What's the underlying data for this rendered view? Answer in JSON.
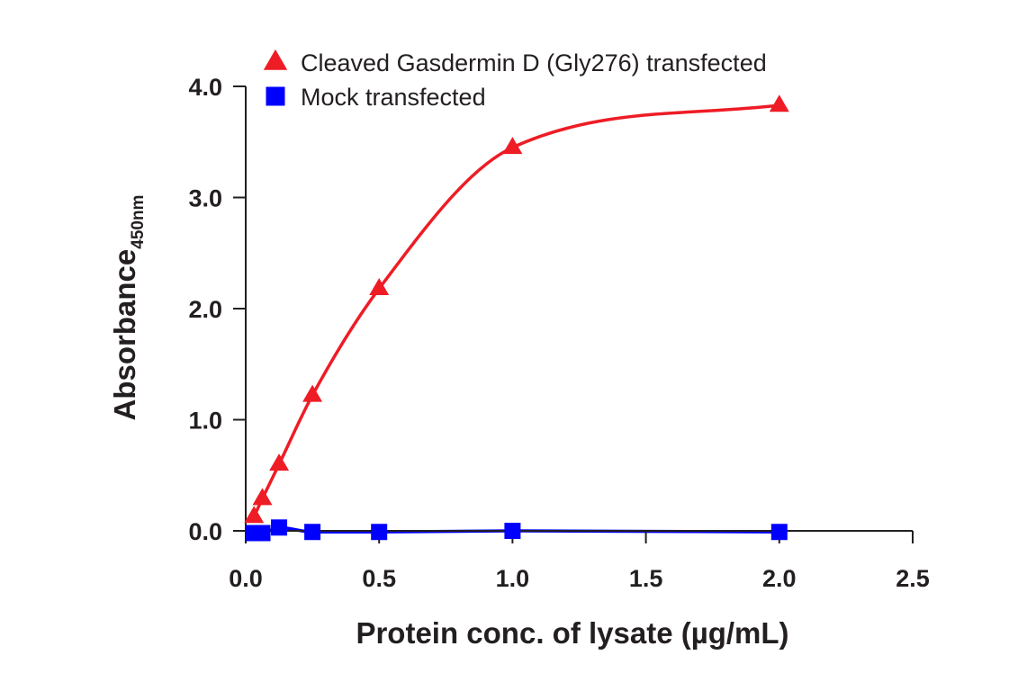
{
  "chart_data": {
    "type": "line",
    "xlabel": "Protein conc. of lysate (µg/mL)",
    "ylabel_main": "Absorbance",
    "ylabel_sub": "450nm",
    "xlim": [
      0,
      2.5
    ],
    "ylim": [
      0,
      4.0
    ],
    "x_ticks": [
      "0.0",
      "0.5",
      "1.0",
      "1.5",
      "2.0",
      "2.5"
    ],
    "y_ticks": [
      "0.0",
      "1.0",
      "2.0",
      "3.0",
      "4.0"
    ],
    "grid": false,
    "legend_position": "top-left",
    "series": [
      {
        "name": "Cleaved Gasdermin D (Gly276) transfected",
        "marker": "triangle",
        "color": "#ee1c25",
        "points": [
          {
            "x": 0.031,
            "y": 0.13
          },
          {
            "x": 0.0625,
            "y": 0.29
          },
          {
            "x": 0.125,
            "y": 0.6
          },
          {
            "x": 0.25,
            "y": 1.22
          },
          {
            "x": 0.5,
            "y": 2.18
          },
          {
            "x": 1.0,
            "y": 3.45
          },
          {
            "x": 2.0,
            "y": 3.83
          }
        ]
      },
      {
        "name": "Mock transfected",
        "marker": "square",
        "color": "#0000ff",
        "points": [
          {
            "x": 0.031,
            "y": -0.02
          },
          {
            "x": 0.0625,
            "y": -0.02
          },
          {
            "x": 0.125,
            "y": 0.03
          },
          {
            "x": 0.25,
            "y": -0.01
          },
          {
            "x": 0.5,
            "y": -0.01
          },
          {
            "x": 1.0,
            "y": 0.0
          },
          {
            "x": 2.0,
            "y": -0.01
          }
        ]
      }
    ]
  }
}
